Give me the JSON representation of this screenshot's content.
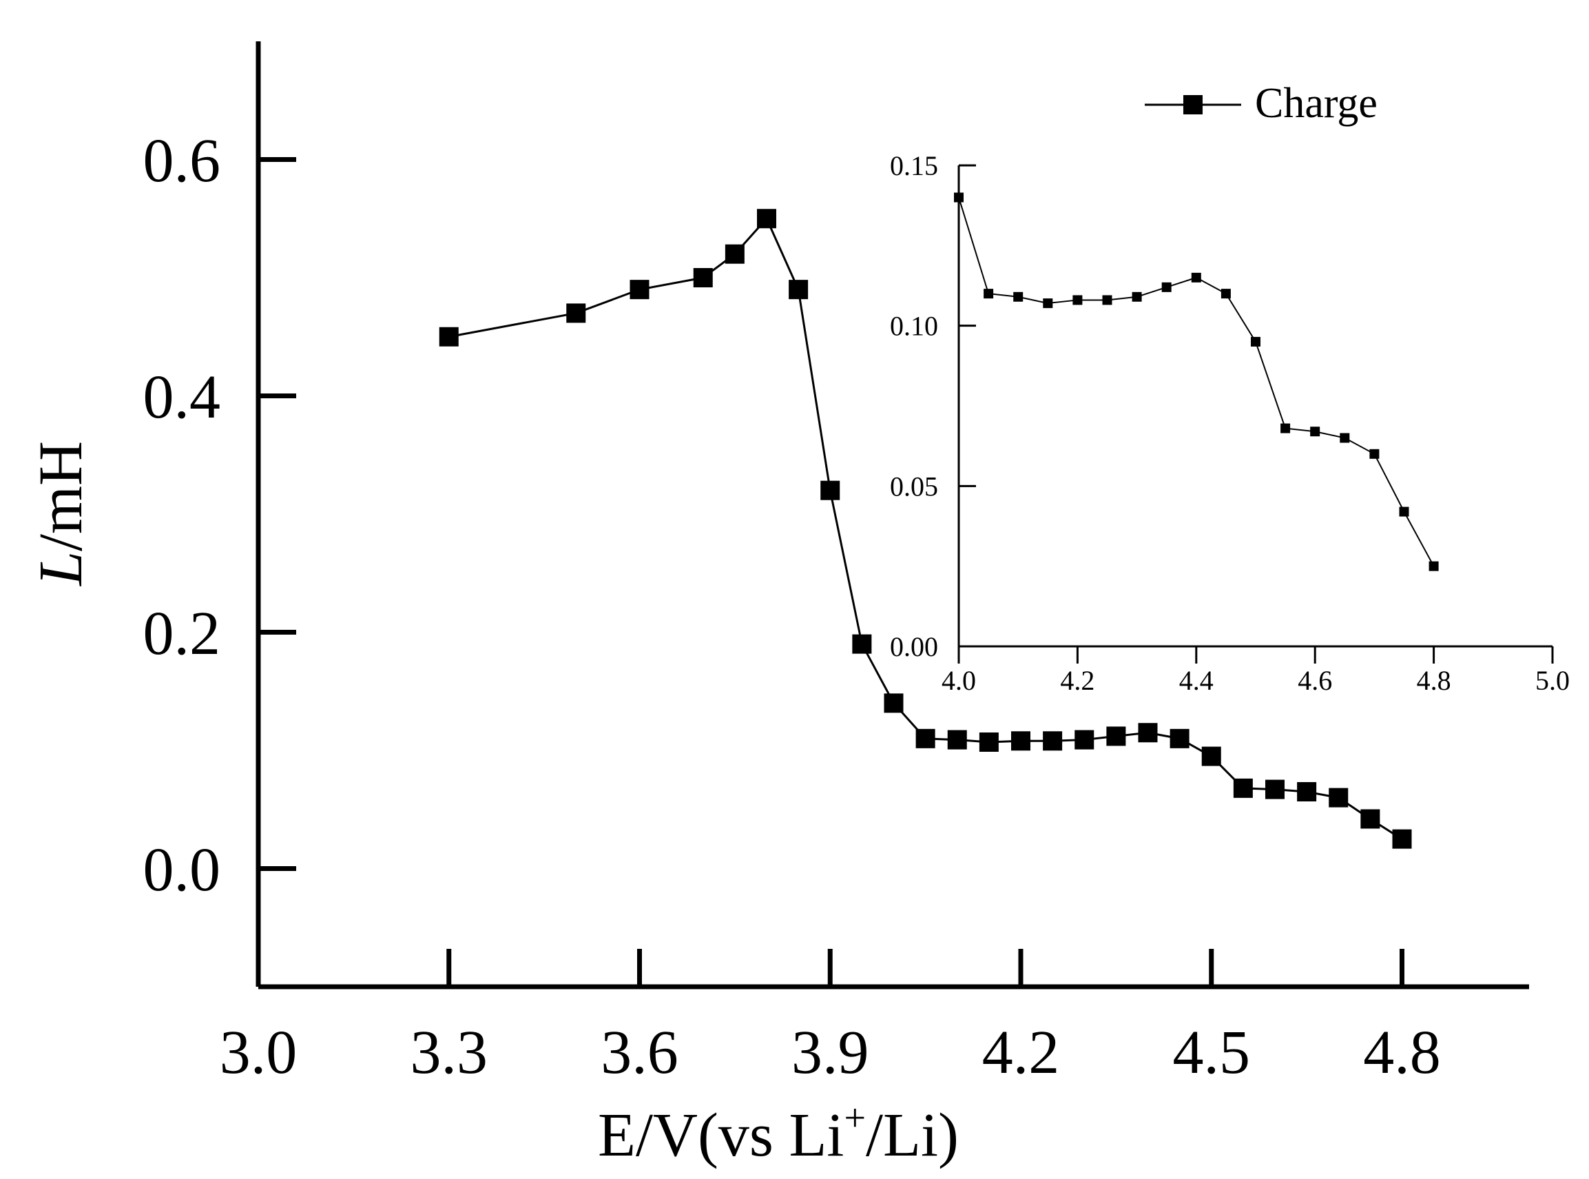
{
  "chart_data": [
    {
      "type": "line",
      "name": "main",
      "xlabel_prefix": "E/V(vs Li",
      "xlabel_sup": "+",
      "xlabel_suffix": "/Li)",
      "ylabel_italic": "L",
      "ylabel_rest": "/mH",
      "xlim": [
        3.0,
        5.0
      ],
      "ylim": [
        -0.1,
        0.7
      ],
      "xticks": [
        "3.0",
        "3.3",
        "3.6",
        "3.9",
        "4.2",
        "4.5",
        "4.8"
      ],
      "xtick_values": [
        3.0,
        3.3,
        3.6,
        3.9,
        4.2,
        4.5,
        4.8
      ],
      "yticks": [
        "0.0",
        "0.2",
        "0.4",
        "0.6"
      ],
      "ytick_values": [
        0.0,
        0.2,
        0.4,
        0.6
      ],
      "series": [
        {
          "name": "Charge",
          "x": [
            3.3,
            3.5,
            3.6,
            3.7,
            3.75,
            3.8,
            3.85,
            3.9,
            3.95,
            4.0,
            4.05,
            4.1,
            4.15,
            4.2,
            4.25,
            4.3,
            4.35,
            4.4,
            4.45,
            4.5,
            4.55,
            4.6,
            4.65,
            4.7,
            4.75,
            4.8
          ],
          "y": [
            0.45,
            0.47,
            0.49,
            0.5,
            0.52,
            0.55,
            0.49,
            0.32,
            0.19,
            0.14,
            0.11,
            0.109,
            0.107,
            0.108,
            0.108,
            0.109,
            0.112,
            0.115,
            0.11,
            0.095,
            0.068,
            0.067,
            0.065,
            0.06,
            0.042,
            0.025
          ]
        }
      ],
      "legend": {
        "position": "top-right",
        "label": "Charge"
      }
    },
    {
      "type": "line",
      "name": "inset",
      "xlim": [
        4.0,
        5.0
      ],
      "ylim": [
        0.0,
        0.15
      ],
      "xticks": [
        "4.0",
        "4.2",
        "4.4",
        "4.6",
        "4.8",
        "5.0"
      ],
      "xtick_values": [
        4.0,
        4.2,
        4.4,
        4.6,
        4.8,
        5.0
      ],
      "yticks": [
        "0.00",
        "0.05",
        "0.10",
        "0.15"
      ],
      "ytick_values": [
        0.0,
        0.05,
        0.1,
        0.15
      ],
      "series": [
        {
          "name": "Charge",
          "x": [
            4.0,
            4.05,
            4.1,
            4.15,
            4.2,
            4.25,
            4.3,
            4.35,
            4.4,
            4.45,
            4.5,
            4.55,
            4.6,
            4.65,
            4.7,
            4.75,
            4.8
          ],
          "y": [
            0.14,
            0.11,
            0.109,
            0.107,
            0.108,
            0.108,
            0.109,
            0.112,
            0.115,
            0.11,
            0.095,
            0.068,
            0.067,
            0.065,
            0.06,
            0.042,
            0.025
          ]
        }
      ]
    }
  ]
}
